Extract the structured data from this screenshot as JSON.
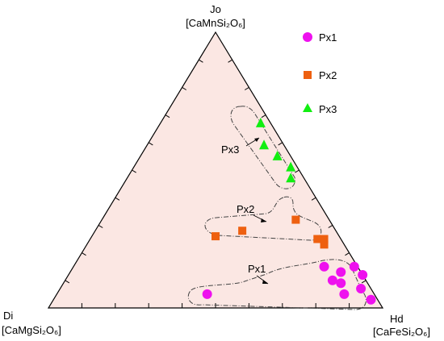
{
  "chart_data": {
    "type": "scatter",
    "subtype": "ternary",
    "vertices": {
      "top": {
        "name": "Jo",
        "formula": "[CaMnSi₂O₆]"
      },
      "left": {
        "name": "Di",
        "formula": "[CaMgSi₂O₆]"
      },
      "right": {
        "name": "Hd",
        "formula": "[CaFeSi₂O₆]"
      }
    },
    "components_order": [
      "Jo",
      "Hd",
      "Di"
    ],
    "series": [
      {
        "name": "Px1",
        "marker": "circle",
        "color": "#ee11ee",
        "points": [
          {
            "Jo": 5,
            "Hd": 45,
            "Di": 50
          },
          {
            "Jo": 15,
            "Hd": 75,
            "Di": 10
          },
          {
            "Jo": 13,
            "Hd": 81,
            "Di": 6
          },
          {
            "Jo": 10,
            "Hd": 80,
            "Di": 10
          },
          {
            "Jo": 9,
            "Hd": 83,
            "Di": 8
          },
          {
            "Jo": 5,
            "Hd": 86,
            "Di": 9
          },
          {
            "Jo": 3,
            "Hd": 95,
            "Di": 2
          },
          {
            "Jo": 7,
            "Hd": 90,
            "Di": 3
          },
          {
            "Jo": 12,
            "Hd": 88,
            "Di": 0
          },
          {
            "Jo": 15,
            "Hd": 84,
            "Di": 1
          }
        ]
      },
      {
        "name": "Px2",
        "marker": "square",
        "color": "#ee6010",
        "points": [
          {
            "Jo": 32,
            "Hd": 58,
            "Di": 10
          },
          {
            "Jo": 28,
            "Hd": 44,
            "Di": 28
          },
          {
            "Jo": 25,
            "Hd": 68,
            "Di": 7
          },
          {
            "Jo": 25,
            "Hd": 70,
            "Di": 5
          },
          {
            "Jo": 23,
            "Hd": 71,
            "Di": 6
          },
          {
            "Jo": 26,
            "Hd": 37,
            "Di": 37
          }
        ]
      },
      {
        "name": "Px3",
        "marker": "triangle",
        "color": "#11ee11",
        "points": [
          {
            "Jo": 67,
            "Hd": 30,
            "Di": 3
          },
          {
            "Jo": 59,
            "Hd": 35,
            "Di": 6
          },
          {
            "Jo": 55,
            "Hd": 41,
            "Di": 4
          },
          {
            "Jo": 51,
            "Hd": 47,
            "Di": 2
          },
          {
            "Jo": 47,
            "Hd": 49,
            "Di": 4
          }
        ]
      }
    ],
    "group_labels": [
      "Px1",
      "Px2",
      "Px3"
    ],
    "legend": {
      "placement": "top-right",
      "entries": [
        {
          "label": "Px1",
          "marker": "circle",
          "color": "#ee11ee"
        },
        {
          "label": "Px2",
          "marker": "square",
          "color": "#ee6010"
        },
        {
          "label": "Px3",
          "marker": "triangle",
          "color": "#11ee11"
        }
      ]
    },
    "background_color": "#fbe7e3",
    "ticks": "10% intervals on each side (unlabeled)"
  }
}
